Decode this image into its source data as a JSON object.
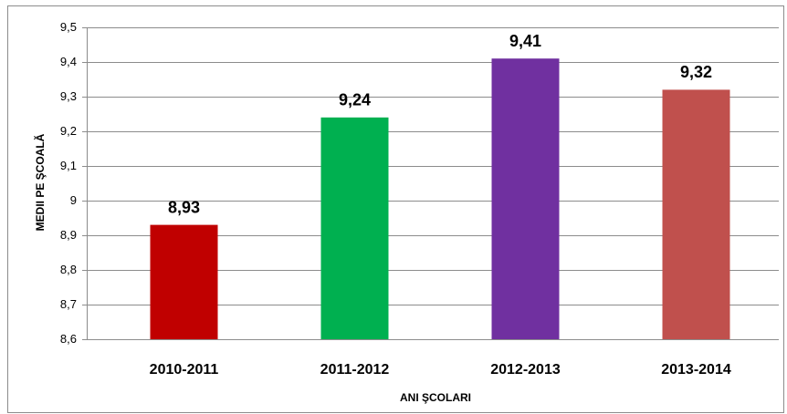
{
  "chart_data": {
    "type": "bar",
    "y_axis_label": "MEDII PE ŞCOALĂ",
    "x_axis_label": "ANI ŞCOLARI",
    "categories": [
      "2010-2011",
      "2011-2012",
      "2012-2013",
      "2013-2014"
    ],
    "values": [
      8.93,
      9.24,
      9.41,
      9.32
    ],
    "value_labels": [
      "8,93",
      "9,24",
      "9,41",
      "9,32"
    ],
    "colors": [
      "#c00000",
      "#00b050",
      "#7030a0",
      "#c0504d"
    ],
    "ylim": [
      8.6,
      9.5
    ],
    "yticks": [
      {
        "value": 8.6,
        "label": "8,6"
      },
      {
        "value": 8.7,
        "label": "8,7"
      },
      {
        "value": 8.8,
        "label": "8,8"
      },
      {
        "value": 8.9,
        "label": "8,9"
      },
      9,
      {
        "value": 9.1,
        "label": "9,1"
      },
      {
        "value": 9.2,
        "label": "9,2"
      },
      {
        "value": 9.3,
        "label": "9,3"
      },
      {
        "value": 9.4,
        "label": "9,4"
      },
      {
        "value": 9.5,
        "label": "9,5"
      }
    ],
    "grid": true
  }
}
